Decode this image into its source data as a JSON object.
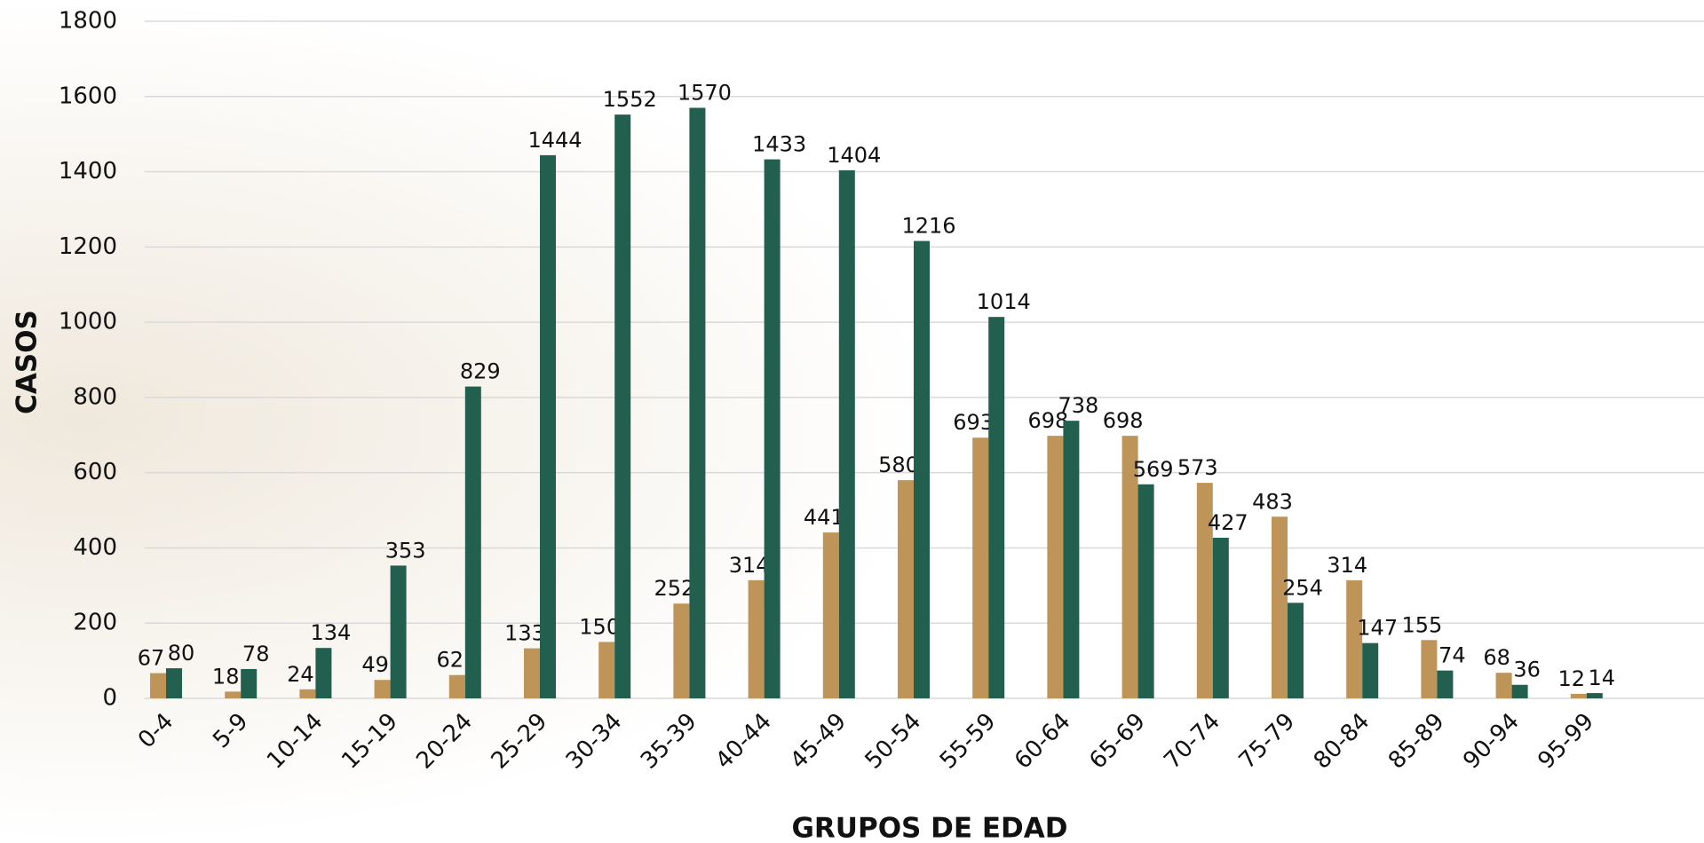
{
  "chart_data": {
    "type": "bar",
    "x_label": "GRUPOS DE EDAD",
    "y_label": "CASOS",
    "categories": [
      "0-4",
      "5-9",
      "10-14",
      "15-19",
      "20-24",
      "25-29",
      "30-34",
      "35-39",
      "40-44",
      "45-49",
      "50-54",
      "55-59",
      "60-64",
      "65-69",
      "70-74",
      "75-79",
      "80-84",
      "85-89",
      "90-94",
      "95-99"
    ],
    "series": [
      {
        "color": "#bf9459",
        "values": [
          67,
          18,
          24,
          49,
          62,
          133,
          150,
          252,
          314,
          441,
          580,
          693,
          698,
          698,
          573,
          483,
          314,
          155,
          68,
          12
        ]
      },
      {
        "color": "#235f4f",
        "values": [
          80,
          78,
          134,
          353,
          829,
          1444,
          1552,
          1570,
          1433,
          1404,
          1216,
          1014,
          738,
          569,
          427,
          254,
          147,
          74,
          36,
          14
        ]
      }
    ],
    "ylim": [
      0,
      1800
    ],
    "yticks": [
      0,
      200,
      400,
      600,
      800,
      1000,
      1200,
      1400,
      1600,
      1800
    ],
    "grid": true
  }
}
